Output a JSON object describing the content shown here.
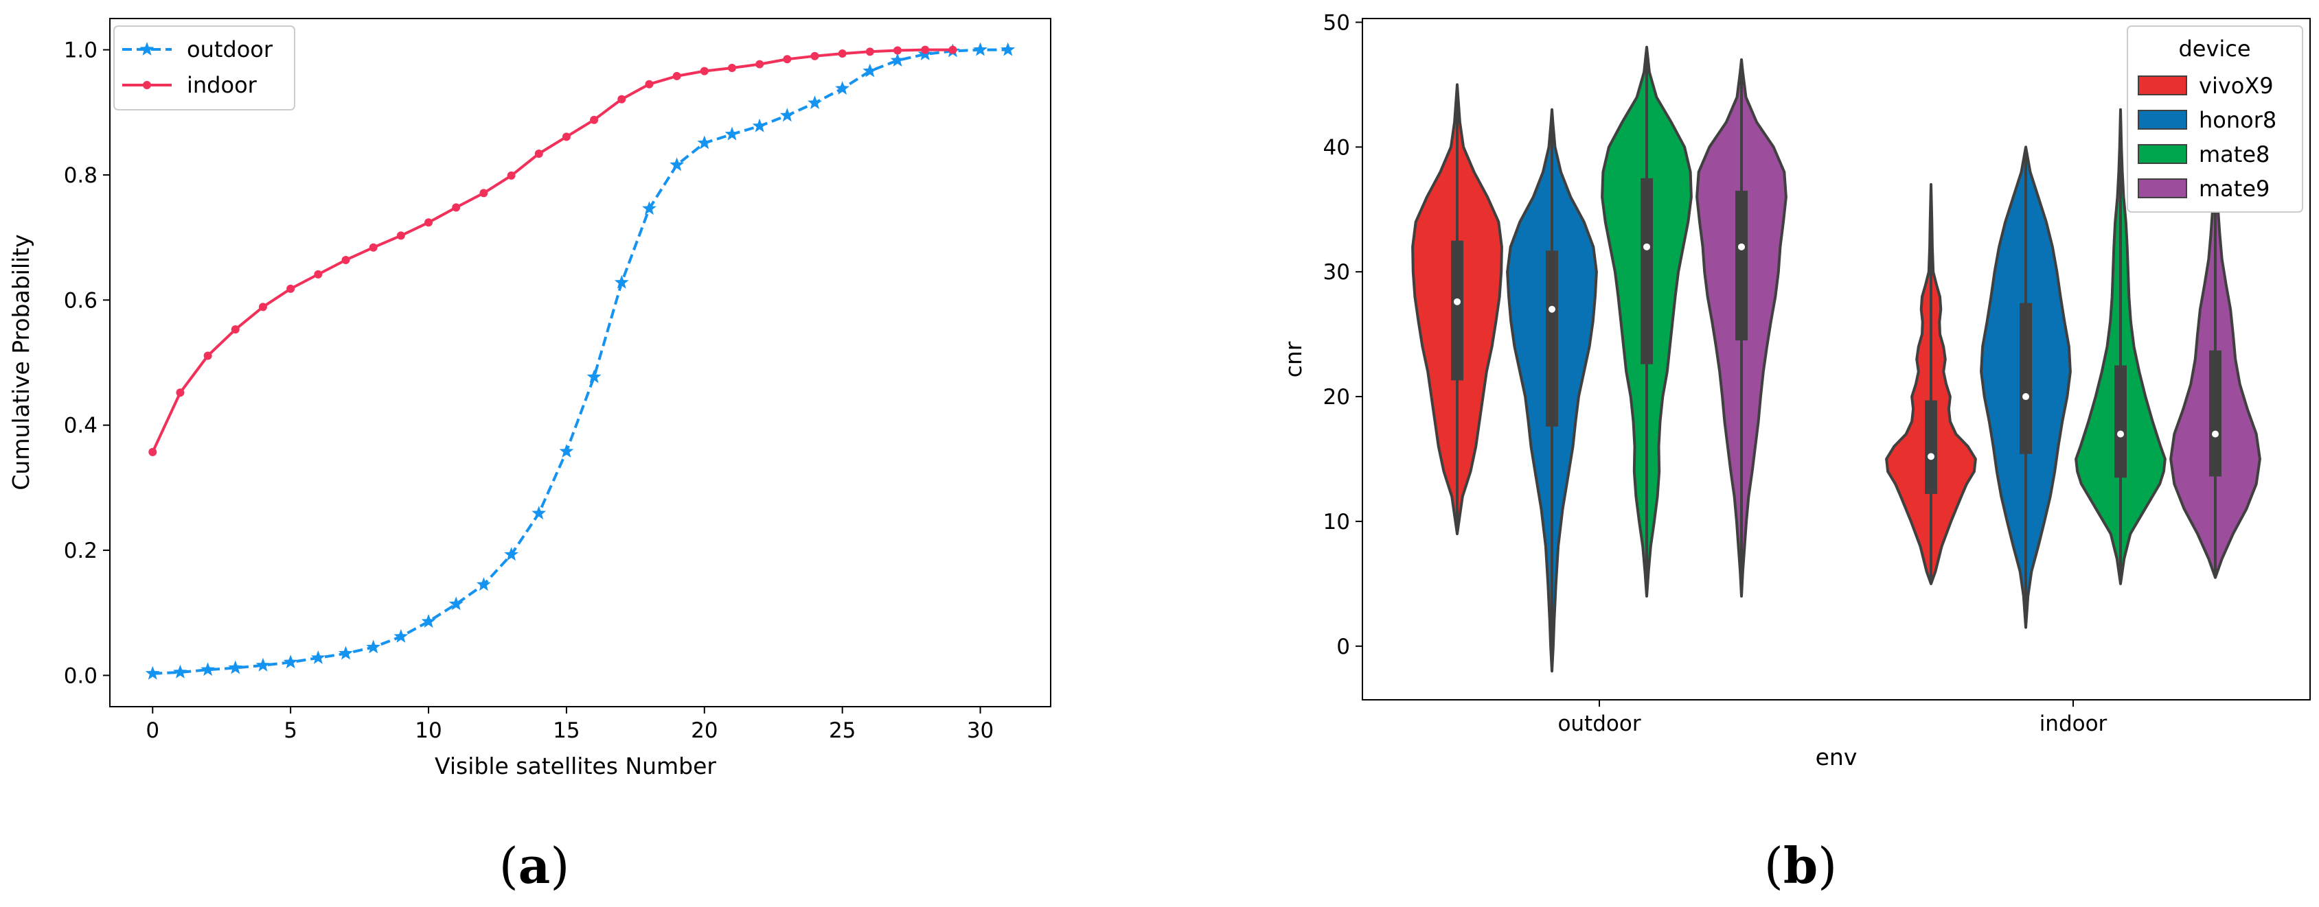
{
  "figure": {
    "panel_labels": [
      {
        "open": "(",
        "letter": "a",
        "close": ")"
      },
      {
        "open": "(",
        "letter": "b",
        "close": ")"
      }
    ]
  },
  "chart_data": [
    {
      "type": "line",
      "xlabel": "Visible satellites Number",
      "ylabel": "Cumulative Probability",
      "xlim": [
        -1.55,
        32.55
      ],
      "ylim": [
        -0.05,
        1.05
      ],
      "xticks": [
        0,
        5,
        10,
        15,
        20,
        25,
        30
      ],
      "yticks": [
        0.0,
        0.2,
        0.4,
        0.6,
        0.8,
        1.0
      ],
      "xtick_labels": [
        "0",
        "5",
        "10",
        "15",
        "20",
        "25",
        "30"
      ],
      "ytick_labels": [
        "0.0",
        "0.2",
        "0.4",
        "0.6",
        "0.8",
        "1.0"
      ],
      "legend_position": "top-left",
      "series": [
        {
          "name": "outdoor",
          "color": "#1593f0",
          "style": "dashed",
          "marker": "star",
          "x": [
            0,
            1,
            2,
            3,
            4,
            5,
            6,
            7,
            8,
            9,
            10,
            11,
            12,
            13,
            14,
            15,
            16,
            17,
            18,
            19,
            20,
            21,
            22,
            23,
            24,
            25,
            26,
            27,
            28,
            29,
            30,
            31
          ],
          "values": [
            0.003,
            0.005,
            0.009,
            0.012,
            0.016,
            0.021,
            0.028,
            0.035,
            0.045,
            0.062,
            0.086,
            0.114,
            0.145,
            0.193,
            0.259,
            0.358,
            0.477,
            0.628,
            0.746,
            0.816,
            0.851,
            0.865,
            0.878,
            0.895,
            0.915,
            0.938,
            0.966,
            0.983,
            0.993,
            0.998,
            1.0,
            1.0
          ]
        },
        {
          "name": "indoor",
          "color": "#f2315a",
          "style": "solid",
          "marker": "dot",
          "x": [
            0,
            1,
            2,
            3,
            4,
            5,
            6,
            7,
            8,
            9,
            10,
            11,
            12,
            13,
            14,
            15,
            16,
            17,
            18,
            19,
            20,
            21,
            22,
            23,
            24,
            25,
            26,
            27,
            28,
            29
          ],
          "values": [
            0.357,
            0.452,
            0.511,
            0.553,
            0.589,
            0.618,
            0.641,
            0.664,
            0.684,
            0.703,
            0.724,
            0.748,
            0.771,
            0.799,
            0.834,
            0.861,
            0.888,
            0.921,
            0.945,
            0.958,
            0.966,
            0.971,
            0.977,
            0.985,
            0.99,
            0.994,
            0.997,
            0.999,
            1.0,
            1.0
          ]
        }
      ]
    },
    {
      "type": "violin",
      "xlabel": "env",
      "ylabel": "cnr",
      "ylim": [
        -4.3,
        50.3
      ],
      "yticks": [
        0,
        10,
        20,
        30,
        40,
        50
      ],
      "ytick_labels": [
        "0",
        "10",
        "20",
        "30",
        "40",
        "50"
      ],
      "categories": [
        "outdoor",
        "indoor"
      ],
      "legend_title": "device",
      "legend_position": "top-right",
      "devices": [
        {
          "name": "vivoX9",
          "color": "#e8312e"
        },
        {
          "name": "honor8",
          "color": "#0872b4"
        },
        {
          "name": "mate8",
          "color": "#00a64d"
        },
        {
          "name": "mate9",
          "color": "#9c4d9c"
        }
      ],
      "violins": [
        {
          "env": "outdoor",
          "device": "vivoX9",
          "min": 9,
          "max": 45,
          "q1": 21.3,
          "median": 27.6,
          "q3": 32.5,
          "profile": [
            [
              9,
              0
            ],
            [
              10,
              0.04
            ],
            [
              12,
              0.12
            ],
            [
              14,
              0.3
            ],
            [
              16,
              0.42
            ],
            [
              18,
              0.5
            ],
            [
              20,
              0.58
            ],
            [
              22,
              0.66
            ],
            [
              24,
              0.78
            ],
            [
              26,
              0.87
            ],
            [
              28,
              0.95
            ],
            [
              30,
              0.99
            ],
            [
              32,
              1.0
            ],
            [
              34,
              0.93
            ],
            [
              36,
              0.68
            ],
            [
              38,
              0.38
            ],
            [
              40,
              0.14
            ],
            [
              42,
              0.06
            ],
            [
              44,
              0.02
            ],
            [
              45,
              0
            ]
          ]
        },
        {
          "env": "outdoor",
          "device": "honor8",
          "min": -2,
          "max": 43,
          "q1": 17.6,
          "median": 27.0,
          "q3": 31.7,
          "profile": [
            [
              -2,
              0
            ],
            [
              0,
              0.03
            ],
            [
              2,
              0.05
            ],
            [
              5,
              0.09
            ],
            [
              8,
              0.14
            ],
            [
              11,
              0.24
            ],
            [
              14,
              0.38
            ],
            [
              16,
              0.47
            ],
            [
              18,
              0.53
            ],
            [
              20,
              0.6
            ],
            [
              22,
              0.72
            ],
            [
              24,
              0.84
            ],
            [
              26,
              0.92
            ],
            [
              28,
              0.97
            ],
            [
              30,
              1.0
            ],
            [
              32,
              0.93
            ],
            [
              34,
              0.72
            ],
            [
              36,
              0.42
            ],
            [
              38,
              0.2
            ],
            [
              40,
              0.07
            ],
            [
              42,
              0.02
            ],
            [
              43,
              0
            ]
          ]
        },
        {
          "env": "outdoor",
          "device": "mate8",
          "min": 4,
          "max": 48,
          "q1": 22.6,
          "median": 32.0,
          "q3": 37.5,
          "profile": [
            [
              4,
              0
            ],
            [
              6,
              0.04
            ],
            [
              8,
              0.09
            ],
            [
              10,
              0.17
            ],
            [
              12,
              0.24
            ],
            [
              14,
              0.28
            ],
            [
              16,
              0.27
            ],
            [
              18,
              0.3
            ],
            [
              20,
              0.36
            ],
            [
              22,
              0.46
            ],
            [
              24,
              0.52
            ],
            [
              26,
              0.58
            ],
            [
              28,
              0.64
            ],
            [
              30,
              0.71
            ],
            [
              32,
              0.82
            ],
            [
              34,
              0.93
            ],
            [
              36,
              1.0
            ],
            [
              38,
              0.98
            ],
            [
              40,
              0.85
            ],
            [
              42,
              0.55
            ],
            [
              44,
              0.22
            ],
            [
              46,
              0.06
            ],
            [
              48,
              0
            ]
          ]
        },
        {
          "env": "outdoor",
          "device": "mate9",
          "min": 4,
          "max": 47,
          "q1": 24.5,
          "median": 32.0,
          "q3": 36.5,
          "profile": [
            [
              4,
              0
            ],
            [
              6,
              0.03
            ],
            [
              8,
              0.07
            ],
            [
              10,
              0.11
            ],
            [
              12,
              0.16
            ],
            [
              14,
              0.24
            ],
            [
              16,
              0.31
            ],
            [
              18,
              0.38
            ],
            [
              20,
              0.43
            ],
            [
              22,
              0.49
            ],
            [
              24,
              0.57
            ],
            [
              26,
              0.66
            ],
            [
              28,
              0.76
            ],
            [
              30,
              0.83
            ],
            [
              32,
              0.87
            ],
            [
              34,
              0.94
            ],
            [
              36,
              1.0
            ],
            [
              38,
              0.96
            ],
            [
              40,
              0.72
            ],
            [
              42,
              0.34
            ],
            [
              44,
              0.1
            ],
            [
              46,
              0.03
            ],
            [
              47,
              0
            ]
          ]
        },
        {
          "env": "indoor",
          "device": "vivoX9",
          "min": 5,
          "max": 37,
          "q1": 12.2,
          "median": 15.2,
          "q3": 19.7,
          "profile": [
            [
              5,
              0
            ],
            [
              6,
              0.1
            ],
            [
              8,
              0.24
            ],
            [
              10,
              0.45
            ],
            [
              12,
              0.68
            ],
            [
              13,
              0.8
            ],
            [
              14,
              0.97
            ],
            [
              15,
              1.0
            ],
            [
              16,
              0.83
            ],
            [
              17,
              0.56
            ],
            [
              18,
              0.43
            ],
            [
              19,
              0.4
            ],
            [
              20,
              0.43
            ],
            [
              21,
              0.34
            ],
            [
              22,
              0.28
            ],
            [
              23,
              0.32
            ],
            [
              24,
              0.28
            ],
            [
              25,
              0.2
            ],
            [
              26,
              0.19
            ],
            [
              27,
              0.22
            ],
            [
              28,
              0.2
            ],
            [
              29,
              0.12
            ],
            [
              30,
              0.05
            ],
            [
              32,
              0.03
            ],
            [
              34,
              0.02
            ],
            [
              37,
              0
            ]
          ]
        },
        {
          "env": "indoor",
          "device": "honor8",
          "min": 1.5,
          "max": 40,
          "q1": 15.4,
          "median": 20.0,
          "q3": 27.5,
          "profile": [
            [
              1.5,
              0
            ],
            [
              4,
              0.05
            ],
            [
              6,
              0.13
            ],
            [
              8,
              0.28
            ],
            [
              10,
              0.42
            ],
            [
              12,
              0.55
            ],
            [
              14,
              0.65
            ],
            [
              16,
              0.73
            ],
            [
              18,
              0.82
            ],
            [
              20,
              0.93
            ],
            [
              22,
              1.0
            ],
            [
              24,
              0.97
            ],
            [
              26,
              0.87
            ],
            [
              28,
              0.78
            ],
            [
              30,
              0.7
            ],
            [
              32,
              0.6
            ],
            [
              34,
              0.46
            ],
            [
              36,
              0.28
            ],
            [
              38,
              0.1
            ],
            [
              40,
              0
            ]
          ]
        },
        {
          "env": "indoor",
          "device": "mate8",
          "min": 5,
          "max": 43,
          "q1": 13.5,
          "median": 17.0,
          "q3": 22.5,
          "profile": [
            [
              5,
              0
            ],
            [
              7,
              0.08
            ],
            [
              9,
              0.22
            ],
            [
              11,
              0.55
            ],
            [
              13,
              0.88
            ],
            [
              14,
              0.97
            ],
            [
              15,
              1.0
            ],
            [
              16,
              0.9
            ],
            [
              18,
              0.72
            ],
            [
              20,
              0.56
            ],
            [
              22,
              0.42
            ],
            [
              24,
              0.3
            ],
            [
              26,
              0.23
            ],
            [
              28,
              0.19
            ],
            [
              30,
              0.17
            ],
            [
              32,
              0.15
            ],
            [
              34,
              0.12
            ],
            [
              36,
              0.07
            ],
            [
              38,
              0.04
            ],
            [
              40,
              0.02
            ],
            [
              43,
              0
            ]
          ]
        },
        {
          "env": "indoor",
          "device": "mate9",
          "min": 5.5,
          "max": 37.5,
          "q1": 13.6,
          "median": 17.0,
          "q3": 23.7,
          "profile": [
            [
              5.5,
              0
            ],
            [
              7,
              0.15
            ],
            [
              9,
              0.4
            ],
            [
              11,
              0.7
            ],
            [
              13,
              0.92
            ],
            [
              15,
              1.0
            ],
            [
              17,
              0.92
            ],
            [
              19,
              0.72
            ],
            [
              21,
              0.55
            ],
            [
              23,
              0.45
            ],
            [
              25,
              0.4
            ],
            [
              27,
              0.34
            ],
            [
              29,
              0.24
            ],
            [
              31,
              0.15
            ],
            [
              33,
              0.1
            ],
            [
              35,
              0.06
            ],
            [
              37.5,
              0
            ]
          ]
        }
      ]
    }
  ]
}
